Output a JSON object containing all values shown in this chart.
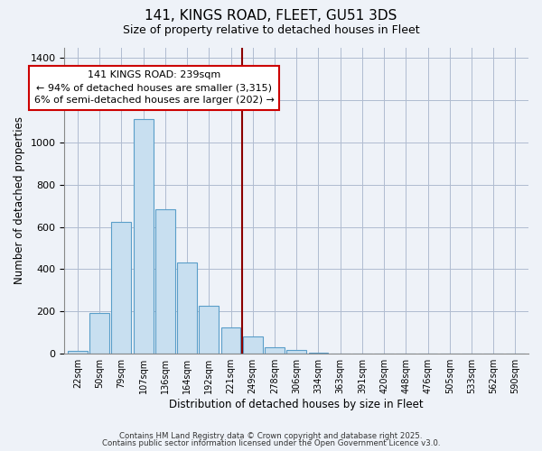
{
  "title": "141, KINGS ROAD, FLEET, GU51 3DS",
  "subtitle": "Size of property relative to detached houses in Fleet",
  "xlabel": "Distribution of detached houses by size in Fleet",
  "ylabel": "Number of detached properties",
  "bar_color": "#c8dff0",
  "bar_edge_color": "#5a9ec9",
  "bin_labels": [
    "22sqm",
    "50sqm",
    "79sqm",
    "107sqm",
    "136sqm",
    "164sqm",
    "192sqm",
    "221sqm",
    "249sqm",
    "278sqm",
    "306sqm",
    "334sqm",
    "363sqm",
    "391sqm",
    "420sqm",
    "448sqm",
    "476sqm",
    "505sqm",
    "533sqm",
    "562sqm",
    "590sqm"
  ],
  "bar_heights": [
    15,
    195,
    625,
    1110,
    685,
    430,
    225,
    125,
    82,
    30,
    20,
    5,
    0,
    0,
    0,
    0,
    0,
    0,
    0,
    0,
    0
  ],
  "ylim": [
    0,
    1450
  ],
  "yticks": [
    0,
    200,
    400,
    600,
    800,
    1000,
    1200,
    1400
  ],
  "vline_x": 7.5,
  "annotation_title": "141 KINGS ROAD: 239sqm",
  "annotation_line1": "← 94% of detached houses are smaller (3,315)",
  "annotation_line2": "6% of semi-detached houses are larger (202) →",
  "vline_color": "#8b0000",
  "footer1": "Contains HM Land Registry data © Crown copyright and database right 2025.",
  "footer2": "Contains public sector information licensed under the Open Government Licence v3.0.",
  "background_color": "#eef2f8",
  "grid_color": "#b0bcd0"
}
